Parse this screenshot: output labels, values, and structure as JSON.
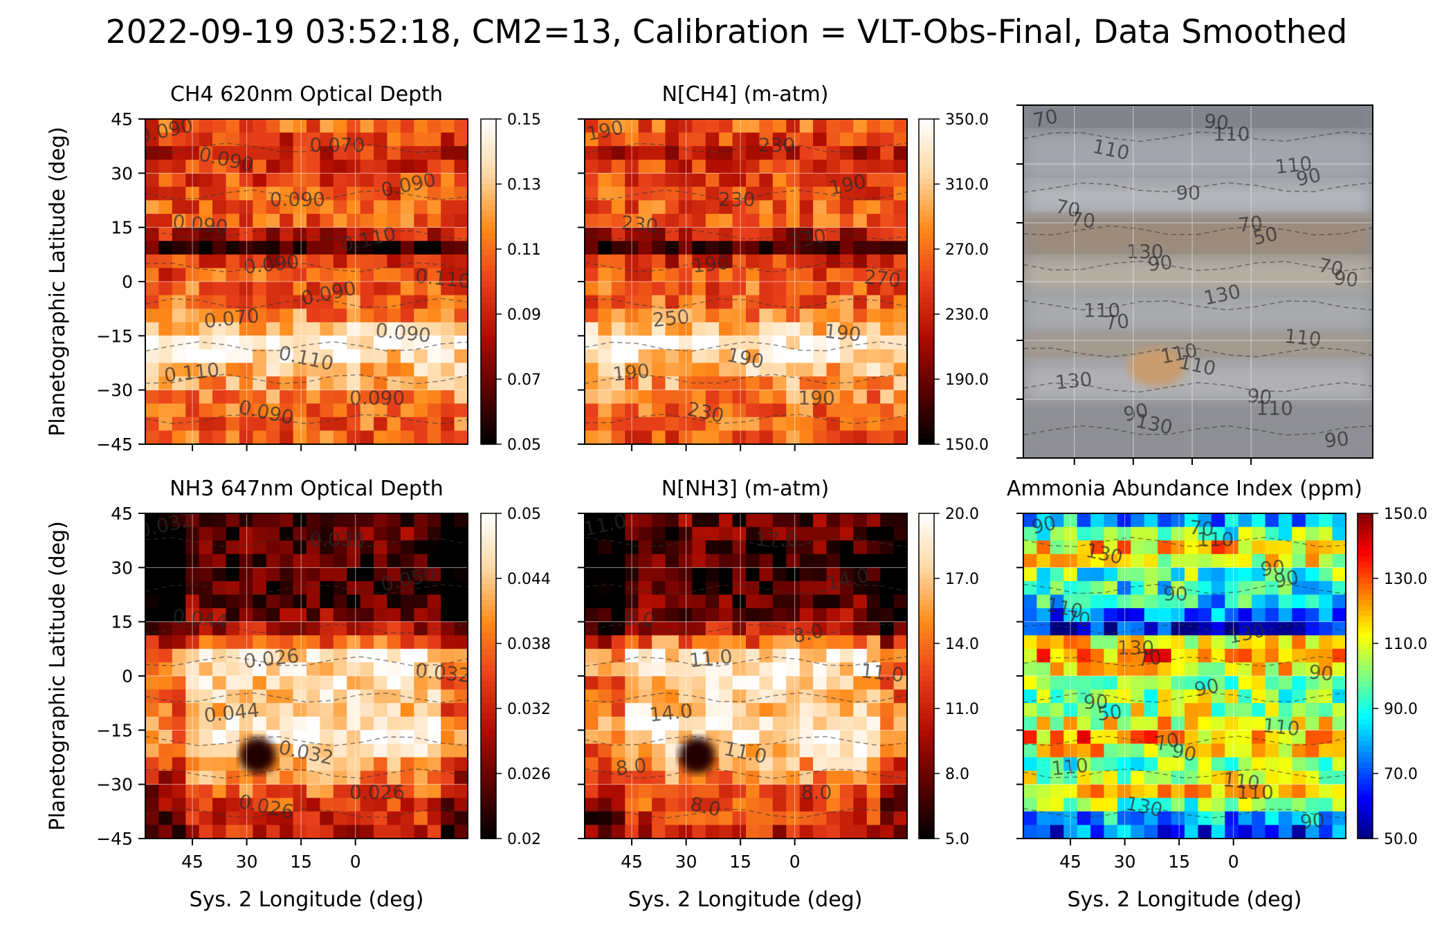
{
  "suptitle": "2022-09-19 03:52:18, CM2=13, Calibration = VLT-Obs-Final, Data Smoothed",
  "axis": {
    "ylabel": "Planetographic Latitude (deg)",
    "xlabel": "Sys. 2 Longitude (deg)",
    "yticks": [
      45,
      30,
      15,
      0,
      -15,
      -30,
      -45
    ],
    "ytick_labels": [
      "45",
      "30",
      "15",
      "0",
      "−15",
      "−30",
      "−45"
    ],
    "xticks": [
      45,
      30,
      15,
      0
    ],
    "xtick_labels": [
      "45",
      "30",
      "15",
      "0"
    ],
    "xlim": [
      58,
      -31
    ],
    "ylim": [
      -45,
      45
    ]
  },
  "colormaps": {
    "hot": [
      "#000000",
      "#5a0000",
      "#b00d00",
      "#e8401a",
      "#ff8c1a",
      "#ffd9a6",
      "#ffffff"
    ],
    "jet": [
      "#00007f",
      "#0000ff",
      "#0080ff",
      "#00ffff",
      "#80ff80",
      "#ffff00",
      "#ff8000",
      "#ff0000",
      "#7f0000"
    ]
  },
  "chart_data": [
    {
      "type": "heatmap",
      "title": "CH4 620nm Optical Depth",
      "cmap": "hot",
      "clim": [
        0.05,
        0.15
      ],
      "colorbar_ticks": [
        "0.15",
        "0.13",
        "0.11",
        "0.09",
        "0.07",
        "0.05"
      ],
      "contour_labels": [
        "0.090",
        "0.090",
        "0.090",
        "0.090",
        "0.110",
        "0.090",
        "0.070",
        "0.070",
        "0.110",
        "0.090",
        "0.110",
        "0.110",
        "0.090",
        "0.090",
        "0.090",
        "0.090"
      ],
      "xlabel": "",
      "ylabel": "Planetographic Latitude (deg)"
    },
    {
      "type": "heatmap",
      "title": "N[CH4] (m-atm)",
      "cmap": "hot",
      "clim": [
        150.0,
        350.0
      ],
      "colorbar_ticks": [
        "350.0",
        "310.0",
        "270.0",
        "230.0",
        "190.0",
        "150.0"
      ],
      "contour_labels": [
        "190",
        "190",
        "190",
        "230",
        "190",
        "190",
        "250",
        "230",
        "270",
        "230",
        "230",
        "190",
        "230",
        "190"
      ],
      "xlabel": "",
      "ylabel": ""
    },
    {
      "type": "image",
      "title": "",
      "contour_labels": [
        "70",
        "90",
        "110",
        "70",
        "110",
        "90",
        "70",
        "110",
        "90",
        "130",
        "50",
        "130",
        "90",
        "110",
        "110",
        "130",
        "90",
        "130",
        "90",
        "70",
        "110",
        "110",
        "110",
        "90",
        "70",
        "90",
        "70"
      ],
      "xlabel": "",
      "ylabel": ""
    },
    {
      "type": "heatmap",
      "title": "NH3 647nm Optical Depth",
      "cmap": "hot",
      "clim": [
        0.02,
        0.05
      ],
      "colorbar_ticks": [
        "0.05",
        "0.044",
        "0.038",
        "0.032",
        "0.026",
        "0.02"
      ],
      "contour_labels": [
        "0.032",
        "0.026",
        "0.026",
        "0.044",
        "0.032",
        "0.050",
        "0.044",
        "0.038",
        "0.032",
        "0.026"
      ],
      "xlabel": "Sys. 2 Longitude (deg)",
      "ylabel": "Planetographic Latitude (deg)"
    },
    {
      "type": "heatmap",
      "title": "N[NH3] (m-atm)",
      "cmap": "hot",
      "clim": [
        5.0,
        20.0
      ],
      "colorbar_ticks": [
        "20.0",
        "17.0",
        "14.0",
        "11.0",
        "8.0",
        "5.0"
      ],
      "contour_labels": [
        "11.0",
        "11.0",
        "8.0",
        "8.0",
        "11.0",
        "14.0",
        "14.0",
        "17.0",
        "11.0",
        "8.0",
        "8.0",
        "8.0"
      ],
      "xlabel": "Sys. 2 Longitude (deg)",
      "ylabel": ""
    },
    {
      "type": "heatmap",
      "title": "Ammonia Abundance Index (ppm)",
      "cmap": "jet",
      "clim": [
        50.0,
        150.0
      ],
      "colorbar_ticks": [
        "150.0",
        "130.0",
        "110.0",
        "90.0",
        "70.0",
        "50.0"
      ],
      "contour_labels": [
        "90",
        "70",
        "110",
        "70",
        "90",
        "90",
        "50",
        "110",
        "90",
        "130",
        "130",
        "110",
        "90",
        "110",
        "130",
        "90",
        "90",
        "130",
        "110",
        "110",
        "70",
        "90",
        "90",
        "70"
      ],
      "xlabel": "Sys. 2 Longitude (deg)",
      "ylabel": ""
    }
  ]
}
